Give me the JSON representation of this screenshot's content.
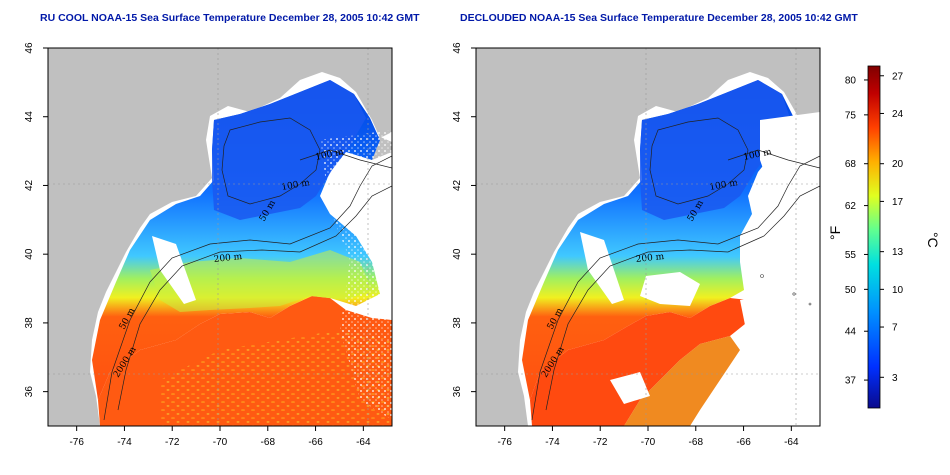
{
  "titles": {
    "left": "RU COOL NOAA-15 Sea Surface Temperature December 28, 2005 10:42 GMT",
    "right": "DECLOUDED NOAA-15 Sea Surface Temperature December 28, 2005 10:42 GMT"
  },
  "axes": {
    "lon_ticks": [
      "-76",
      "-74",
      "-72",
      "-70",
      "-68",
      "-66",
      "-64"
    ],
    "lat_ticks": [
      "36",
      "38",
      "40",
      "42",
      "44",
      "46"
    ],
    "lon_range": [
      -77.2,
      -62.8
    ],
    "lat_range": [
      35,
      46
    ]
  },
  "contour_labels": {
    "left": [
      "100 m",
      "100 m",
      "50 m",
      "200 m",
      "50 m",
      "2000 m"
    ],
    "right": [
      "100 m",
      "100 m",
      "50 m",
      "200 m",
      "50 m",
      "2000 m"
    ]
  },
  "colorbar": {
    "fahrenheit_label": "°F",
    "celsius_label": "°C",
    "fahrenheit_ticks": [
      "80",
      "75",
      "68",
      "62",
      "55",
      "50",
      "44",
      "37"
    ],
    "celsius_ticks": [
      "27",
      "24",
      "20",
      "17",
      "13",
      "10",
      "7",
      "3"
    ],
    "colors": [
      "#0a0a8c",
      "#0030ff",
      "#0090ff",
      "#00e0e0",
      "#60ff90",
      "#e0ff20",
      "#ffb000",
      "#ff4000",
      "#c00000",
      "#800000"
    ]
  },
  "colors": {
    "land": "#c0c0c0",
    "title": "#0018a8"
  }
}
